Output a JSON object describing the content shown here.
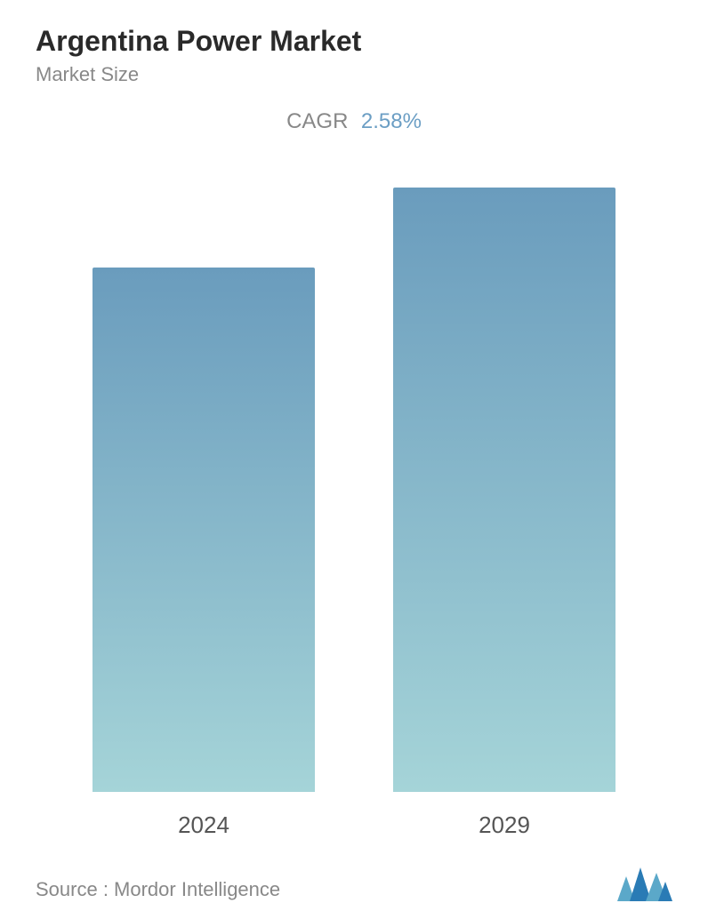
{
  "header": {
    "title": "Argentina Power Market",
    "subtitle": "Market Size"
  },
  "cagr": {
    "label": "CAGR",
    "value": "2.58%",
    "label_color": "#888888",
    "value_color": "#6b9ec4",
    "fontsize": 24
  },
  "chart": {
    "type": "bar",
    "categories": [
      "2024",
      "2029"
    ],
    "values": [
      590,
      680
    ],
    "max_height": 680,
    "bar_width_pct": 82,
    "bar_gradient_top": "#6a9cbd",
    "bar_gradient_bottom": "#a5d4d8",
    "label_fontsize": 26,
    "label_color": "#555555",
    "background_color": "#ffffff"
  },
  "footer": {
    "source": "Source :   Mordor Intelligence",
    "source_color": "#888888",
    "source_fontsize": 22
  },
  "logo": {
    "primary_color": "#2a7bb5",
    "secondary_color": "#5ba8c9"
  },
  "typography": {
    "title_fontsize": 32,
    "title_weight": 700,
    "title_color": "#2a2a2a",
    "subtitle_fontsize": 22,
    "subtitle_color": "#888888"
  }
}
